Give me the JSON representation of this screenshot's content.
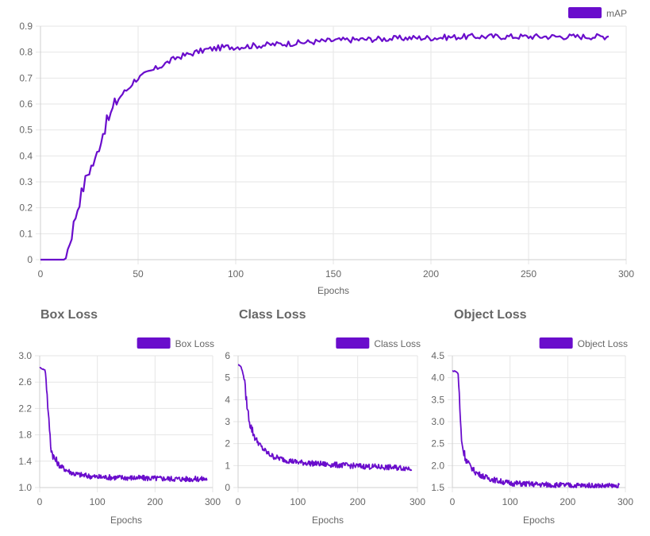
{
  "colors": {
    "series": "#6a0dcc",
    "grid": "#e6e6e6",
    "text": "#666666"
  },
  "titles": {
    "box": "Box Loss",
    "cls": "Class Loss",
    "obj": "Object Loss"
  },
  "chart_data": [
    {
      "id": "map",
      "type": "line",
      "title": "",
      "xlabel": "Epochs",
      "ylabel": "",
      "xlim": [
        0,
        300
      ],
      "ylim": [
        0,
        0.9
      ],
      "xticks": [
        "0",
        "50",
        "100",
        "150",
        "200",
        "250",
        "300"
      ],
      "yticks": [
        "0",
        "0.1",
        "0.2",
        "0.3",
        "0.4",
        "0.5",
        "0.6",
        "0.7",
        "0.8",
        "0.9"
      ],
      "legend": "top-right",
      "grid": true,
      "series": [
        {
          "name": "mAP",
          "x": [
            0,
            5,
            10,
            12,
            14,
            16,
            18,
            20,
            22,
            24,
            26,
            28,
            30,
            32,
            34,
            36,
            38,
            40,
            42,
            45,
            48,
            50,
            55,
            60,
            65,
            70,
            75,
            80,
            85,
            90,
            95,
            100,
            110,
            120,
            130,
            140,
            150,
            160,
            170,
            180,
            190,
            200,
            210,
            220,
            230,
            240,
            250,
            260,
            270,
            280,
            290,
            291
          ],
          "values": [
            0,
            0,
            0,
            0.005,
            0.04,
            0.1,
            0.17,
            0.23,
            0.28,
            0.33,
            0.36,
            0.38,
            0.44,
            0.49,
            0.53,
            0.56,
            0.6,
            0.62,
            0.64,
            0.66,
            0.69,
            0.7,
            0.72,
            0.74,
            0.76,
            0.78,
            0.79,
            0.8,
            0.81,
            0.815,
            0.82,
            0.82,
            0.825,
            0.83,
            0.835,
            0.84,
            0.845,
            0.848,
            0.85,
            0.852,
            0.855,
            0.855,
            0.858,
            0.86,
            0.86,
            0.86,
            0.86,
            0.86,
            0.86,
            0.86,
            0.86,
            0.87
          ]
        }
      ]
    },
    {
      "id": "box",
      "type": "line",
      "title": "Box Loss",
      "xlabel": "Epochs",
      "ylabel": "",
      "xlim": [
        0,
        300
      ],
      "ylim": [
        1.0,
        3.0
      ],
      "xticks": [
        "0",
        "100",
        "200",
        "300"
      ],
      "yticks": [
        "1.0",
        "1.4",
        "1.8",
        "2.2",
        "2.6",
        "3.0"
      ],
      "legend": "top-right",
      "grid": true,
      "series": [
        {
          "name": "Box Loss",
          "x": [
            0,
            5,
            10,
            13,
            15,
            17,
            19,
            21,
            25,
            30,
            35,
            40,
            50,
            60,
            80,
            100,
            150,
            200,
            250,
            290
          ],
          "values": [
            2.82,
            2.8,
            2.78,
            2.4,
            2.1,
            1.9,
            1.65,
            1.55,
            1.45,
            1.38,
            1.33,
            1.3,
            1.25,
            1.21,
            1.18,
            1.16,
            1.15,
            1.14,
            1.13,
            1.13
          ]
        }
      ]
    },
    {
      "id": "cls",
      "type": "line",
      "title": "Class Loss",
      "xlabel": "Epochs",
      "ylabel": "",
      "xlim": [
        0,
        300
      ],
      "ylim": [
        0,
        6
      ],
      "xticks": [
        "0",
        "100",
        "200",
        "300"
      ],
      "yticks": [
        "0",
        "1",
        "2",
        "3",
        "4",
        "5",
        "6"
      ],
      "legend": "top-right",
      "grid": true,
      "series": [
        {
          "name": "Class Loss",
          "x": [
            0,
            5,
            10,
            13,
            16,
            20,
            25,
            30,
            40,
            50,
            60,
            80,
            100,
            150,
            200,
            250,
            290
          ],
          "values": [
            5.6,
            5.5,
            5.0,
            4.2,
            3.5,
            2.9,
            2.5,
            2.2,
            1.8,
            1.55,
            1.4,
            1.25,
            1.15,
            1.05,
            0.98,
            0.92,
            0.88
          ]
        }
      ]
    },
    {
      "id": "obj",
      "type": "line",
      "title": "Object Loss",
      "xlabel": "Epochs",
      "ylabel": "",
      "xlim": [
        0,
        300
      ],
      "ylim": [
        1.5,
        4.5
      ],
      "xticks": [
        "0",
        "100",
        "200",
        "300"
      ],
      "yticks": [
        "1.5",
        "2.0",
        "2.5",
        "3.0",
        "3.5",
        "4.0",
        "4.5"
      ],
      "legend": "top-right",
      "grid": true,
      "series": [
        {
          "name": "Object Loss",
          "x": [
            0,
            5,
            10,
            12,
            14,
            16,
            18,
            20,
            25,
            30,
            40,
            50,
            60,
            80,
            100,
            150,
            200,
            250,
            290
          ],
          "values": [
            4.15,
            4.15,
            4.1,
            3.6,
            3.0,
            2.6,
            2.4,
            2.3,
            2.1,
            2.0,
            1.85,
            1.78,
            1.72,
            1.65,
            1.6,
            1.57,
            1.55,
            1.54,
            1.53
          ]
        }
      ]
    }
  ]
}
